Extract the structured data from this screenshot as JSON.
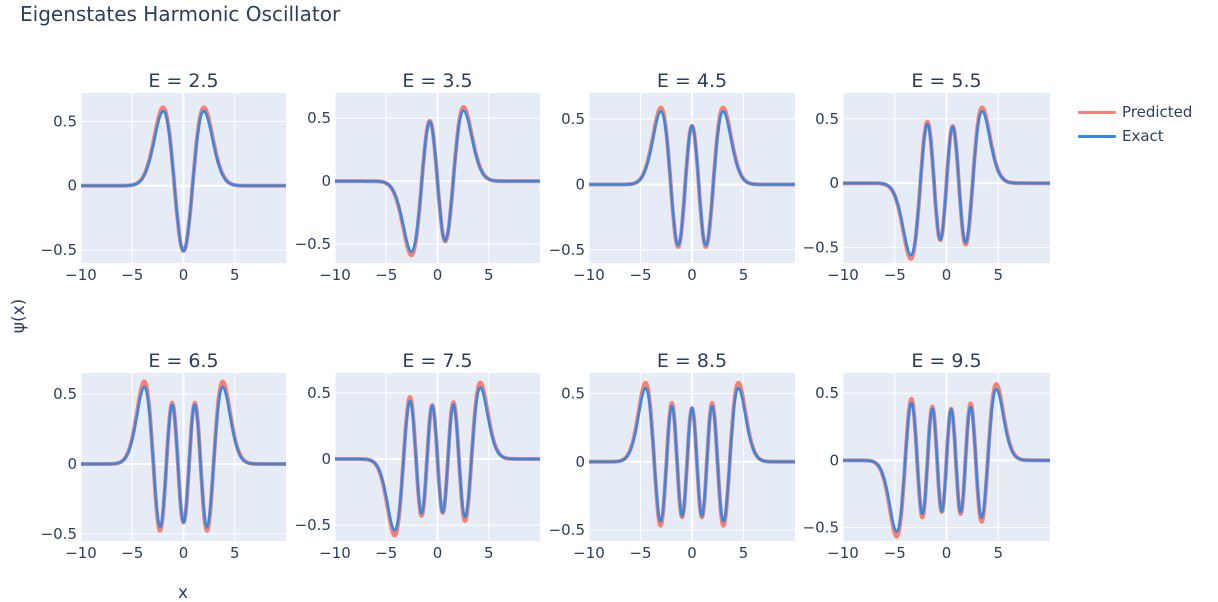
{
  "page": {
    "title": "Eigenstates Harmonic Oscillator"
  },
  "colors": {
    "predicted": "#fa7f72",
    "exact": "#3289e8",
    "plot_bg": "#e5ecf6",
    "grid": "#ffffff",
    "text": "#2a3f5f"
  },
  "legend": {
    "items": [
      {
        "label": "Predicted",
        "color": "#fa7f72"
      },
      {
        "label": "Exact",
        "color": "#3289e8"
      }
    ],
    "placement": "top-right"
  },
  "chart_data": {
    "type": "line",
    "xlabel": "x",
    "ylabel": "ψ(x)",
    "xlim": [
      -10,
      10
    ],
    "x_ticks": [
      -10,
      -5,
      0,
      5
    ],
    "x_tick_labels": [
      "−10",
      "−5",
      "0",
      "5"
    ],
    "y_tick_labels": {
      "0.5": "0.5",
      "0": "0",
      "-0.5": "−0.5"
    },
    "grid": true,
    "panels": [
      {
        "title": "E = 2.5",
        "n": 2,
        "ylim": [
          -0.6,
          0.72
        ],
        "exact_peak_abs": 0.58,
        "predicted_scale": 1.06
      },
      {
        "title": "E = 3.5",
        "n": 3,
        "ylim": [
          -0.65,
          0.7
        ],
        "exact_peak_abs": 0.56,
        "predicted_scale": 1.05
      },
      {
        "title": "E = 4.5",
        "n": 4,
        "ylim": [
          -0.6,
          0.7
        ],
        "exact_peak_abs": 0.56,
        "predicted_scale": 1.05
      },
      {
        "title": "E = 5.5",
        "n": 5,
        "ylim": [
          -0.62,
          0.7
        ],
        "exact_peak_abs": 0.56,
        "predicted_scale": 1.05
      },
      {
        "title": "E = 6.5",
        "n": 6,
        "ylim": [
          -0.55,
          0.65
        ],
        "exact_peak_abs": 0.55,
        "predicted_scale": 1.07
      },
      {
        "title": "E = 7.5",
        "n": 7,
        "ylim": [
          -0.62,
          0.65
        ],
        "exact_peak_abs": 0.54,
        "predicted_scale": 1.07
      },
      {
        "title": "E = 8.5",
        "n": 8,
        "ylim": [
          -0.58,
          0.65
        ],
        "exact_peak_abs": 0.54,
        "predicted_scale": 1.07
      },
      {
        "title": "E = 9.5",
        "n": 9,
        "ylim": [
          -0.6,
          0.65
        ],
        "exact_peak_abs": 0.53,
        "predicted_scale": 1.07
      }
    ]
  }
}
